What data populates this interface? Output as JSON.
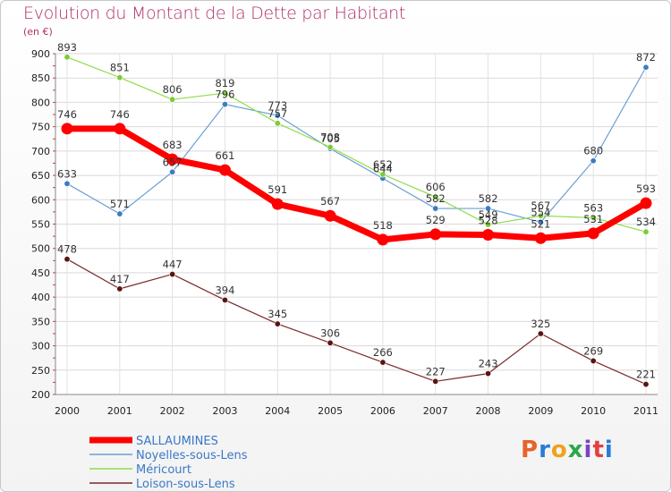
{
  "chart_data": {
    "type": "line",
    "title": "Evolution du Montant de la Dette par Habitant",
    "subtitle": "(en €)",
    "x": [
      "2000",
      "2001",
      "2002",
      "2003",
      "2004",
      "2005",
      "2006",
      "2007",
      "2008",
      "2009",
      "2010",
      "2011"
    ],
    "ylim": [
      200,
      900
    ],
    "yticks": [
      200,
      250,
      300,
      350,
      400,
      450,
      500,
      550,
      600,
      650,
      700,
      750,
      800,
      850,
      900
    ],
    "grid": true,
    "legend_position": "bottom-left",
    "series": [
      {
        "name": "Noyelles-sous-Lens",
        "color": "#6a9fd4",
        "marker": "#3a7cc2",
        "width": 1.2,
        "values": [
          633,
          571,
          657,
          796,
          773,
          705,
          644,
          582,
          582,
          554,
          680,
          872
        ]
      },
      {
        "name": "Méricourt",
        "color": "#8fdc4a",
        "marker": "#7ccc34",
        "width": 1.2,
        "values": [
          893,
          851,
          806,
          819,
          757,
          708,
          652,
          606,
          549,
          567,
          563,
          534
        ]
      },
      {
        "name": "Loison-sous-Lens",
        "color": "#7a2a2a",
        "marker": "#5a1414",
        "width": 1.2,
        "values": [
          478,
          417,
          447,
          394,
          345,
          306,
          266,
          227,
          243,
          325,
          269,
          221
        ]
      },
      {
        "name": "SALLAUMINES",
        "color": "#ff0000",
        "marker": "#ff0000",
        "width": 7,
        "values": [
          746,
          746,
          683,
          661,
          591,
          567,
          518,
          529,
          528,
          521,
          531,
          593
        ]
      }
    ]
  },
  "legend_order": [
    {
      "name": "SALLAUMINES",
      "color": "#ff0000",
      "thick": true
    },
    {
      "name": "Noyelles-sous-Lens",
      "color": "#6a9fd4",
      "thick": false
    },
    {
      "name": "Méricourt",
      "color": "#8fdc4a",
      "thick": false
    },
    {
      "name": "Loison-sous-Lens",
      "color": "#7a2a2a",
      "thick": false
    }
  ],
  "logo": {
    "text": "Proxiti"
  }
}
